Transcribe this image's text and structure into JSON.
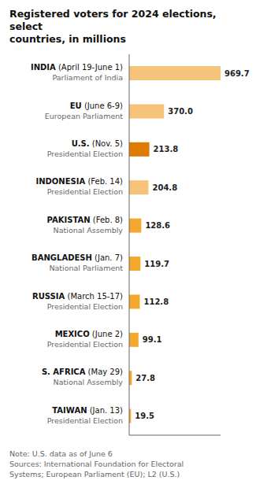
{
  "chart_data": {
    "type": "bar",
    "orientation": "horizontal",
    "title": "Registered voters for 2024 elections, select\ncountries, in millions",
    "note": "Note: U.S. data as of June 6\nSources: International Foundation for Electoral\nSystems; European Parliament (EU); L2 (U.S.)",
    "categories": [
      "INDIA",
      "EU",
      "U.S.",
      "INDONESIA",
      "PAKISTAN",
      "BANGLADESH",
      "RUSSIA",
      "MEXICO",
      "S. AFRICA",
      "TAIWAN"
    ],
    "dates": [
      " (April 19-June 1)",
      " (June 6-9)",
      " (Nov. 5)",
      " (Feb. 14)",
      " (Feb. 8)",
      " (Jan. 7)",
      " (March 15-17)",
      " (June 2)",
      " (May 29)",
      " (Jan. 13)"
    ],
    "subtitles": [
      "Parliament of India",
      "European Parliament",
      "Presidential Election",
      "Presidential Election",
      "National Assembly",
      "National Parliament",
      "Presidential Election",
      "Presidential Election",
      "National Assembly",
      "Presidential Election"
    ],
    "values": [
      969.7,
      370.0,
      213.8,
      204.8,
      128.6,
      119.7,
      112.8,
      99.1,
      27.8,
      19.5
    ],
    "value_labels": [
      "969.7",
      "370.0",
      "213.8",
      "204.8",
      "128.6",
      "119.7",
      "112.8",
      "99.1",
      "27.8",
      "19.5"
    ],
    "colors": [
      "#F5C47A",
      "#F5C47A",
      "#E07B00",
      "#F5C47A",
      "#F5A830",
      "#F5A830",
      "#F5A830",
      "#F5A830",
      "#F5A830",
      "#F5A830"
    ],
    "xlim": [
      0,
      969.7
    ],
    "data_labels": true,
    "tick_labels": false,
    "grid": false
  }
}
